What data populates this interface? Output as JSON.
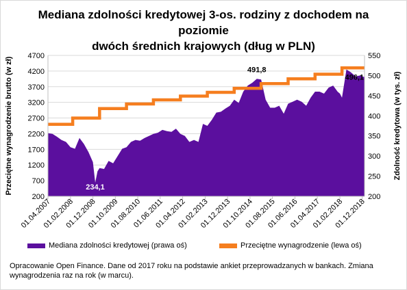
{
  "title_line1": "Mediana zdolności kredytowej 3-os. rodziny z dochodem na poziomie",
  "title_line2": "dwóch średnich krajowych (dług w PLN)",
  "note": "Opracowanie Open Finance. Dane od 2017 roku na podstawie ankiet przeprowadzanych w bankach.  Zmiana wynagrodzenia raz na rok (w marcu).",
  "colors": {
    "area": "#5b0f9e",
    "line": "#f57e1f",
    "grid": "#d9d9d9"
  },
  "chart_data": {
    "type": "area",
    "title": "Mediana zdolności kredytowej 3-os. rodziny z dochodem na poziomie dwóch średnich krajowych (dług w PLN)",
    "xlabel": "",
    "ylabel_left": "Przeciętne wynagrodzenie brutto (w zł)",
    "ylabel_right": "Zdolność kredytowa (w tys. zł)",
    "ylim_left": [
      200,
      4700
    ],
    "ylim_right": [
      200,
      550
    ],
    "yticks_left": [
      200,
      700,
      1200,
      1700,
      2200,
      2700,
      3200,
      3700,
      4200,
      4700
    ],
    "yticks_right": [
      200,
      250,
      300,
      350,
      400,
      450,
      500,
      550
    ],
    "xlim": [
      "2007-04-01",
      "2019-01-01"
    ],
    "xticks": [
      "01.04.2007",
      "01.02.2008",
      "01.12.2008",
      "01.10.2009",
      "01.08.2010",
      "01.06.2011",
      "01.04.2012",
      "01.02.2013",
      "01.12.2013",
      "01.10.2014",
      "01.08.2015",
      "01.06.2016",
      "01.04.2017",
      "01.02.2018",
      "01.12.2018"
    ],
    "grid": true,
    "legend_position": "bottom",
    "series": [
      {
        "name": "Mediana zdolności kredytowej (prawa oś)",
        "axis": "right",
        "type": "area",
        "x": [
          "2007-04-01",
          "2007-06-01",
          "2007-08-01",
          "2007-10-01",
          "2007-12-01",
          "2008-02-01",
          "2008-04-01",
          "2008-06-01",
          "2008-08-01",
          "2008-10-01",
          "2008-12-01",
          "2009-01-01",
          "2009-02-01",
          "2009-03-01",
          "2009-05-01",
          "2009-07-01",
          "2009-09-01",
          "2009-11-01",
          "2010-01-01",
          "2010-03-01",
          "2010-05-01",
          "2010-07-01",
          "2010-09-01",
          "2010-11-01",
          "2011-01-01",
          "2011-03-01",
          "2011-05-01",
          "2011-07-01",
          "2011-09-01",
          "2011-11-01",
          "2012-01-01",
          "2012-03-01",
          "2012-05-01",
          "2012-07-01",
          "2012-09-01",
          "2012-11-01",
          "2013-01-01",
          "2013-03-01",
          "2013-05-01",
          "2013-07-01",
          "2013-09-01",
          "2013-11-01",
          "2014-01-01",
          "2014-03-01",
          "2014-05-01",
          "2014-07-01",
          "2014-09-01",
          "2014-11-01",
          "2015-01-01",
          "2015-03-01",
          "2015-05-01",
          "2015-07-01",
          "2015-09-01",
          "2015-11-01",
          "2016-01-01",
          "2016-03-01",
          "2016-05-01",
          "2016-07-01",
          "2016-09-01",
          "2016-11-01",
          "2017-01-01",
          "2017-03-01",
          "2017-05-01",
          "2017-07-01",
          "2017-09-01",
          "2017-11-01",
          "2018-01-01",
          "2018-02-01",
          "2018-03-01",
          "2018-05-01",
          "2018-07-01",
          "2018-09-01",
          "2018-11-01",
          "2019-01-01"
        ],
        "values": [
          357,
          355,
          348,
          340,
          335,
          322,
          318,
          345,
          330,
          310,
          285,
          234,
          262,
          270,
          268,
          288,
          282,
          300,
          318,
          322,
          335,
          340,
          338,
          345,
          350,
          355,
          358,
          365,
          362,
          360,
          368,
          355,
          350,
          335,
          340,
          335,
          380,
          375,
          390,
          408,
          410,
          418,
          425,
          440,
          432,
          460,
          475,
          482,
          491.8,
          490,
          440,
          420,
          420,
          425,
          405,
          430,
          435,
          440,
          435,
          425,
          445,
          460,
          460,
          455,
          470,
          475,
          460,
          455,
          445,
          515,
          508,
          498,
          500,
          496.1
        ]
      },
      {
        "name": "Przeciętne wynagrodzenie (lewa oś)",
        "axis": "left",
        "type": "step-line",
        "x": [
          "2007-04-01",
          "2008-03-01",
          "2009-03-01",
          "2010-03-01",
          "2011-03-01",
          "2012-03-01",
          "2013-03-01",
          "2014-03-01",
          "2015-03-01",
          "2016-03-01",
          "2017-03-01",
          "2018-03-01",
          "2019-01-01"
        ],
        "values": [
          2500,
          2700,
          3000,
          3150,
          3280,
          3400,
          3520,
          3650,
          3800,
          3950,
          4100,
          4300,
          4300
        ]
      }
    ],
    "annotations": [
      {
        "x": "2009-01-01",
        "value": "234,1",
        "color": "#ffffff"
      },
      {
        "x": "2015-01-01",
        "value": "491,8",
        "color": "#000000"
      },
      {
        "x": "2019-01-01",
        "value": "496,1",
        "color": "#000000"
      }
    ]
  }
}
